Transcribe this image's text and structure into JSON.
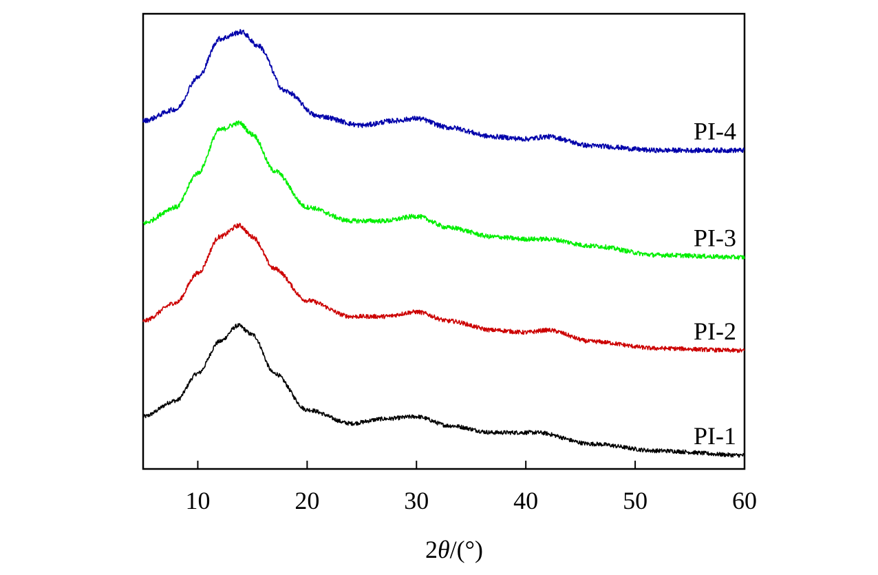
{
  "chart_data": {
    "type": "line",
    "title": "",
    "xlabel_prefix": "2",
    "xlabel_symbol": "θ",
    "xlabel_suffix": "/(°)",
    "ylabel": "",
    "xlim": [
      5,
      60
    ],
    "ylim": [
      0,
      100
    ],
    "x_ticks": [
      10,
      20,
      30,
      40,
      50,
      60
    ],
    "x_tick_labels": [
      "10",
      "20",
      "30",
      "40",
      "50",
      "60"
    ],
    "grid": false,
    "legend": "inline-right",
    "series": [
      {
        "name": "PI-1",
        "color": "#000000",
        "points": [
          [
            5,
            11.5
          ],
          [
            8,
            15
          ],
          [
            10,
            21
          ],
          [
            12,
            28
          ],
          [
            13.7,
            31.5
          ],
          [
            15,
            29.5
          ],
          [
            17,
            21
          ],
          [
            20,
            13
          ],
          [
            24,
            10
          ],
          [
            27,
            11
          ],
          [
            30,
            11.5
          ],
          [
            33,
            9.5
          ],
          [
            37,
            8
          ],
          [
            41,
            8
          ],
          [
            46,
            5.5
          ],
          [
            52,
            4
          ],
          [
            60,
            3
          ]
        ]
      },
      {
        "name": "PI-2",
        "color": "#cc0000",
        "points": [
          [
            5,
            32.5
          ],
          [
            8,
            36.5
          ],
          [
            10,
            43
          ],
          [
            12,
            51
          ],
          [
            13.8,
            53.5
          ],
          [
            15,
            51
          ],
          [
            17,
            44
          ],
          [
            20,
            37
          ],
          [
            24,
            33.5
          ],
          [
            27,
            33.5
          ],
          [
            30,
            34.5
          ],
          [
            33,
            32.5
          ],
          [
            37,
            30.5
          ],
          [
            40,
            30
          ],
          [
            42,
            30.5
          ],
          [
            46,
            28
          ],
          [
            52,
            26.5
          ],
          [
            60,
            26
          ]
        ]
      },
      {
        "name": "PI-3",
        "color": "#00ee00",
        "points": [
          [
            5,
            54
          ],
          [
            8,
            57.5
          ],
          [
            10,
            65
          ],
          [
            12,
            74.5
          ],
          [
            13.8,
            76
          ],
          [
            15,
            73.5
          ],
          [
            17,
            65.5
          ],
          [
            20,
            57.5
          ],
          [
            24,
            54.5
          ],
          [
            27,
            54.5
          ],
          [
            30,
            55.5
          ],
          [
            33,
            53
          ],
          [
            37,
            51
          ],
          [
            40,
            50.5
          ],
          [
            42,
            50.5
          ],
          [
            46,
            49
          ],
          [
            52,
            47
          ],
          [
            60,
            46.5
          ]
        ]
      },
      {
        "name": "PI-4",
        "color": "#0000aa",
        "points": [
          [
            5,
            76.5
          ],
          [
            8,
            79
          ],
          [
            10,
            86
          ],
          [
            12,
            94.5
          ],
          [
            14,
            96
          ],
          [
            15.5,
            93
          ],
          [
            18,
            83
          ],
          [
            21,
            77.5
          ],
          [
            25,
            75.5
          ],
          [
            28,
            76.5
          ],
          [
            30,
            77
          ],
          [
            33,
            75
          ],
          [
            37,
            73
          ],
          [
            40,
            72.5
          ],
          [
            42,
            73
          ],
          [
            46,
            71
          ],
          [
            52,
            70
          ],
          [
            60,
            70
          ]
        ]
      }
    ]
  }
}
